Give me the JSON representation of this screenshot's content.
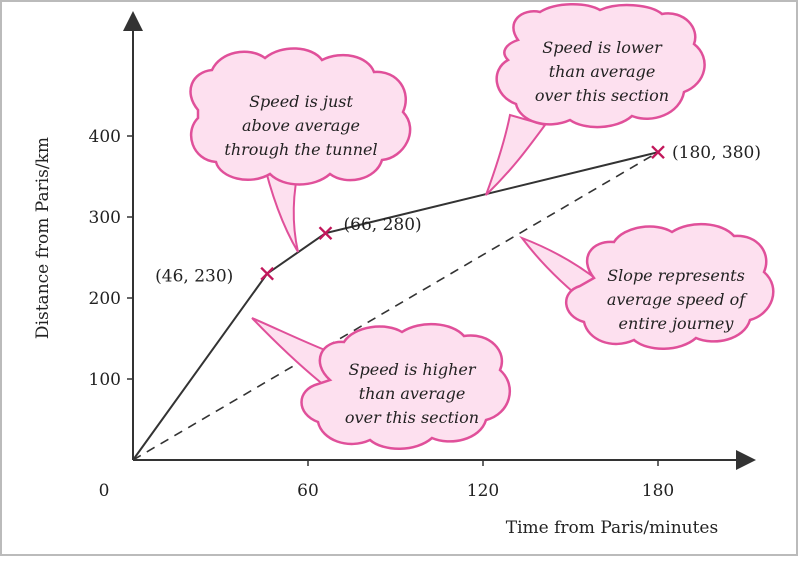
{
  "chart_data": {
    "type": "line",
    "xlabel": "Time from Paris/minutes",
    "ylabel": "Distance from Paris/km",
    "xlim": [
      0,
      200
    ],
    "ylim": [
      0,
      420
    ],
    "x_ticks": [
      0,
      60,
      120,
      180
    ],
    "y_ticks": [
      100,
      200,
      300,
      400
    ],
    "series": [
      {
        "style": "solid",
        "x": [
          0,
          46,
          66,
          180
        ],
        "y": [
          0,
          230,
          280,
          380
        ]
      },
      {
        "style": "dashed",
        "x": [
          0,
          180
        ],
        "y": [
          0,
          380
        ]
      }
    ],
    "marked_points": [
      {
        "x": 46,
        "y": 230,
        "label": "(46, 230)"
      },
      {
        "x": 66,
        "y": 280,
        "label": "(66, 280)"
      },
      {
        "x": 180,
        "y": 380,
        "label": "(180, 380)"
      }
    ],
    "annotations": [
      {
        "lines": [
          "Speed is just",
          "above average",
          "through the tunnel"
        ]
      },
      {
        "lines": [
          "Speed is lower",
          "than average",
          "over this section"
        ]
      },
      {
        "lines": [
          "Speed is higher",
          "than average",
          "over this section"
        ]
      },
      {
        "lines": [
          "Slope represents",
          "average speed of",
          "entire journey"
        ]
      }
    ],
    "colors": {
      "marker": "#c2185b",
      "callout_fill": "#fde0ef",
      "callout_stroke": "#e0509a",
      "line": "#333333"
    }
  }
}
